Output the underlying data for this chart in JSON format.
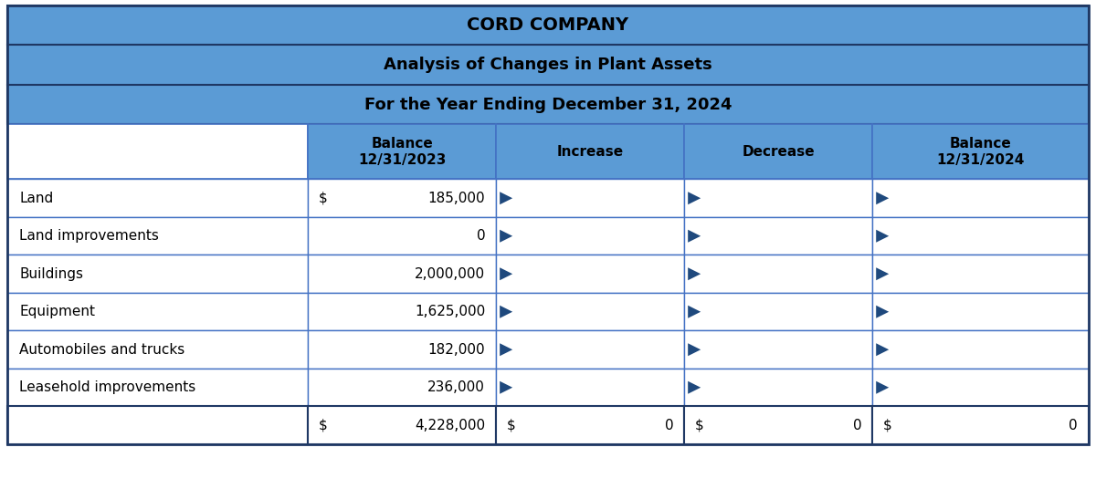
{
  "title1": "CORD COMPANY",
  "title2": "Analysis of Changes in Plant Assets",
  "title3": "For the Year Ending December 31, 2024",
  "header_bg": "#5B9BD5",
  "col_headers": [
    "Balance\n12/31/2023",
    "Increase",
    "Decrease",
    "Balance\n12/31/2024"
  ],
  "row_labels": [
    "Land",
    "Land improvements",
    "Buildings",
    "Equipment",
    "Automobiles and trucks",
    "Leasehold improvements"
  ],
  "col1_data": [
    "$ 185,000",
    "0",
    "2,000,000",
    "1,625,000",
    "182,000",
    "236,000"
  ],
  "col1_dollar": [
    true,
    false,
    false,
    false,
    false,
    false
  ],
  "total_col1": "$ 4,228,000",
  "total_col2": "$ 0",
  "total_col3": "$ 0",
  "total_col4": "$ 0",
  "arrow_color": "#1F497D",
  "cell_bg": "#FFFFFF",
  "border_color": "#4472C4",
  "dark_border": "#1F3864",
  "fig_width": 12.0,
  "fig_height": 5.36,
  "dpi": 100
}
